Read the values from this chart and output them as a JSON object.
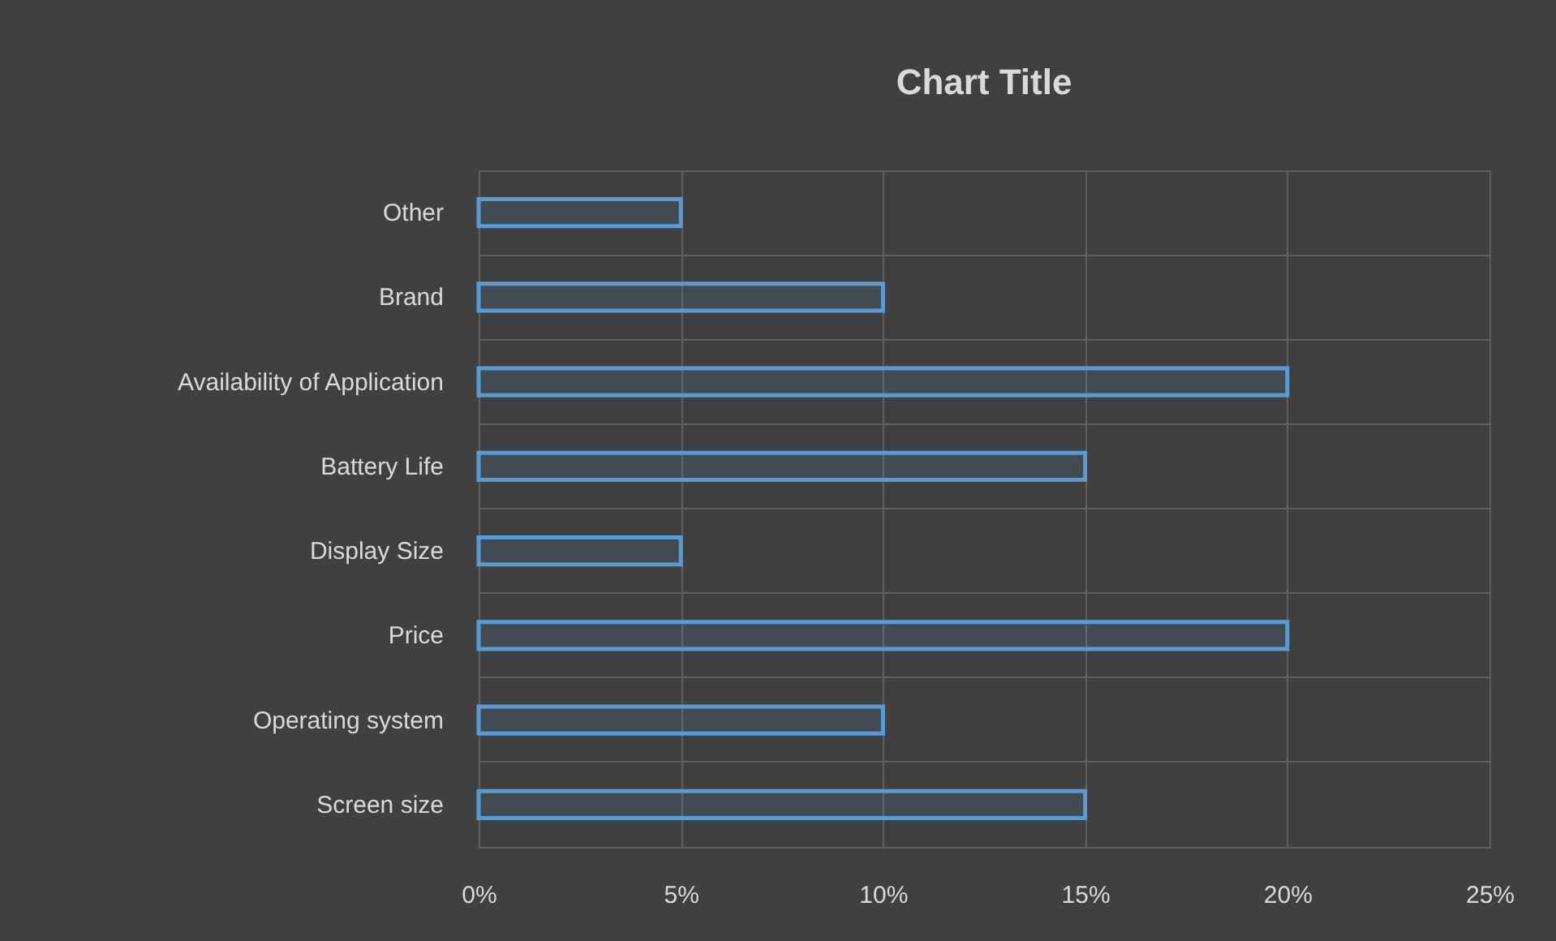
{
  "chart_data": {
    "type": "bar",
    "orientation": "horizontal",
    "title": "Chart Title",
    "categories": [
      "Other",
      "Brand",
      "Availability of Application",
      "Battery Life",
      "Display Size",
      "Price",
      "Operating system",
      "Screen size"
    ],
    "values": [
      5,
      10,
      20,
      15,
      5,
      20,
      10,
      15
    ],
    "color": "#5b9bd5",
    "xlim": [
      0,
      25
    ],
    "xticks": [
      {
        "value": 0,
        "label": "0%"
      },
      {
        "value": 5,
        "label": "5%"
      },
      {
        "value": 10,
        "label": "10%"
      },
      {
        "value": 15,
        "label": "15%"
      },
      {
        "value": 20,
        "label": "20%"
      },
      {
        "value": 25,
        "label": "25%"
      }
    ],
    "grid": true
  }
}
